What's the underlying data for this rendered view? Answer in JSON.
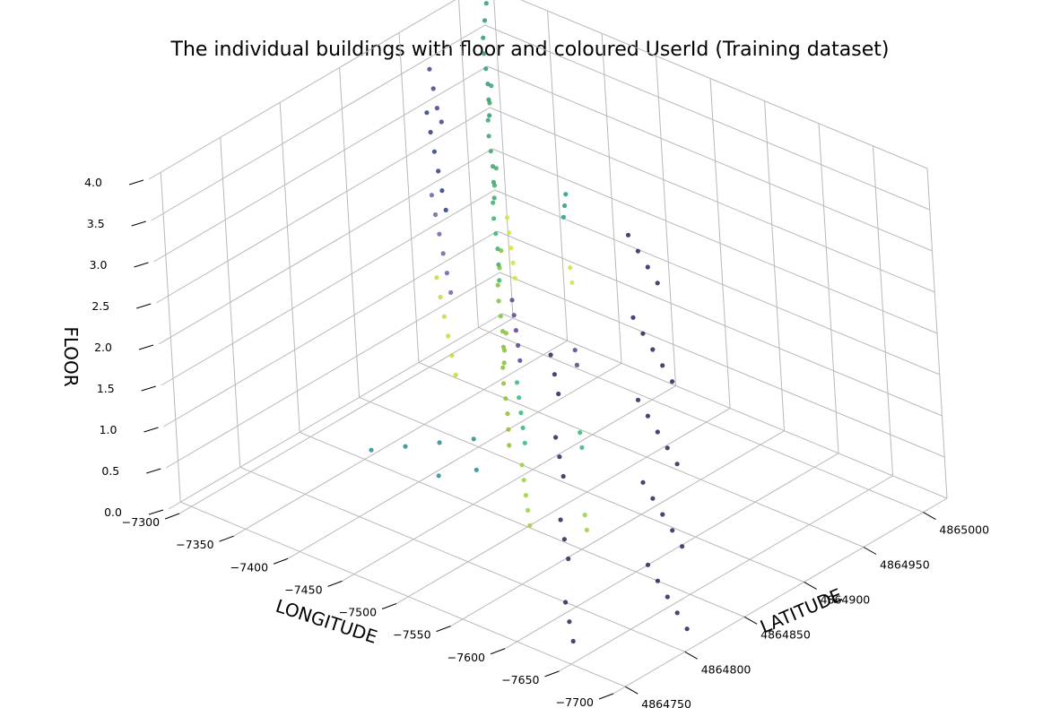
{
  "chart_data": {
    "type": "scatter",
    "projection": "3d",
    "title": "The individual buildings with floor and coloured UserId (Training dataset)",
    "xlabel": "LONGITUDE",
    "ylabel": "LATITUDE",
    "zlabel": "FLOOR",
    "xlim": [
      -7700,
      -7290
    ],
    "ylim": [
      4864740,
      4865020
    ],
    "zlim": [
      0,
      4
    ],
    "x_ticks": [
      "−7300",
      "−7350",
      "−7400",
      "−7450",
      "−7500",
      "−7550",
      "−7600",
      "−7650",
      "−7700"
    ],
    "x_tick_values": [
      -7300,
      -7350,
      -7400,
      -7450,
      -7500,
      -7550,
      -7600,
      -7650,
      -7700
    ],
    "y_ticks": [
      "4864750",
      "4864800",
      "4864850",
      "4864900",
      "4864950",
      "4865000"
    ],
    "y_tick_values": [
      4864750,
      4864800,
      4864850,
      4864900,
      4864950,
      4865000
    ],
    "z_ticks": [
      "0.0",
      "0.5",
      "1.0",
      "1.5",
      "2.0",
      "2.5",
      "3.0",
      "3.5",
      "4.0"
    ],
    "z_tick_values": [
      0,
      0.5,
      1,
      1.5,
      2,
      2.5,
      3,
      3.5,
      4
    ],
    "grid": true,
    "colormap": "viridis",
    "color_by": "UserId",
    "colormap_stops": [
      "#440154",
      "#482878",
      "#3e4a89",
      "#31688e",
      "#26828e",
      "#1f9e89",
      "#35b779",
      "#6ece58",
      "#b5de2b",
      "#fde725"
    ],
    "series": [
      {
        "group": "building-0-floor-0",
        "floor": 0,
        "color": "#8fbd2f",
        "points": [
          [
            -7310,
            4865005
          ],
          [
            -7325,
            4864990
          ],
          [
            -7340,
            4864975
          ],
          [
            -7355,
            4864962
          ],
          [
            -7370,
            4864950
          ],
          [
            -7385,
            4864938
          ],
          [
            -7400,
            4864925
          ],
          [
            -7415,
            4864912
          ]
        ]
      },
      {
        "group": "building-0-floor-0-lower",
        "floor": 0,
        "color": "#2b8b8c",
        "points": [
          [
            -7345,
            4864860
          ],
          [
            -7360,
            4864875
          ],
          [
            -7375,
            4864890
          ],
          [
            -7390,
            4864905
          ],
          [
            -7420,
            4864880
          ],
          [
            -7405,
            4864862
          ]
        ]
      },
      {
        "group": "building-0-floor-1",
        "floor": 1,
        "color": "#7fbf3a",
        "points": [
          [
            -7310,
            4865005
          ],
          [
            -7325,
            4864990
          ],
          [
            -7340,
            4864975
          ],
          [
            -7355,
            4864962
          ],
          [
            -7370,
            4864950
          ],
          [
            -7385,
            4864938
          ],
          [
            -7400,
            4864925
          ],
          [
            -7415,
            4864912
          ]
        ]
      },
      {
        "group": "building-0-floor-1-b",
        "floor": 1,
        "color": "#c4dc3a",
        "points": [
          [
            -7300,
            4864960
          ],
          [
            -7320,
            4864945
          ],
          [
            -7340,
            4864930
          ],
          [
            -7360,
            4864915
          ],
          [
            -7380,
            4864900
          ],
          [
            -7400,
            4864885
          ]
        ]
      },
      {
        "group": "building-0-floor-2",
        "floor": 2,
        "color": "#3aaf6d",
        "points": [
          [
            -7310,
            4865005
          ],
          [
            -7325,
            4864990
          ],
          [
            -7340,
            4864975
          ],
          [
            -7355,
            4864962
          ],
          [
            -7370,
            4864950
          ],
          [
            -7385,
            4864938
          ],
          [
            -7400,
            4864925
          ],
          [
            -7415,
            4864912
          ]
        ]
      },
      {
        "group": "building-0-floor-2-b",
        "floor": 2,
        "color": "#6b63a6",
        "points": [
          [
            -7300,
            4864960
          ],
          [
            -7320,
            4864945
          ],
          [
            -7340,
            4864930
          ],
          [
            -7360,
            4864915
          ],
          [
            -7380,
            4864900
          ],
          [
            -7400,
            4864885
          ]
        ]
      },
      {
        "group": "building-0-floor-3",
        "floor": 3,
        "color": "#3aa36a",
        "points": [
          [
            -7310,
            4865005
          ],
          [
            -7325,
            4864990
          ],
          [
            -7340,
            4864975
          ],
          [
            -7355,
            4864962
          ],
          [
            -7370,
            4864950
          ],
          [
            -7385,
            4864938
          ],
          [
            -7400,
            4864925
          ],
          [
            -7415,
            4864912
          ]
        ]
      },
      {
        "group": "building-0-floor-3-b",
        "floor": 3,
        "color": "#2d3f7a",
        "points": [
          [
            -7300,
            4864960
          ],
          [
            -7320,
            4864945
          ],
          [
            -7340,
            4864930
          ],
          [
            -7360,
            4864915
          ],
          [
            -7380,
            4864900
          ],
          [
            -7400,
            4864885
          ]
        ]
      },
      {
        "group": "building-0-floor-4",
        "floor": 4,
        "color": "#2e9a72",
        "points": [
          [
            -7310,
            4865005
          ],
          [
            -7325,
            4864990
          ],
          [
            -7340,
            4864975
          ],
          [
            -7355,
            4864962
          ],
          [
            -7370,
            4864950
          ],
          [
            -7385,
            4864938
          ],
          [
            -7400,
            4864925
          ],
          [
            -7415,
            4864912
          ]
        ]
      },
      {
        "group": "building-0-floor-4-b",
        "floor": 4,
        "color": "#4b3f8a",
        "points": [
          [
            -7340,
            4864930
          ],
          [
            -7360,
            4864915
          ],
          [
            -7380,
            4864900
          ],
          [
            -7395,
            4864890
          ]
        ]
      },
      {
        "group": "building-1-floor-0",
        "floor": 0,
        "color": "#9ccf3f",
        "points": [
          [
            -7440,
            4864900
          ],
          [
            -7455,
            4864888
          ],
          [
            -7470,
            4864876
          ],
          [
            -7485,
            4864864
          ],
          [
            -7500,
            4864852
          ],
          [
            -7520,
            4864880
          ],
          [
            -7535,
            4864868
          ]
        ]
      },
      {
        "group": "building-1-floor-1",
        "floor": 1,
        "color": "#35b779",
        "points": [
          [
            -7440,
            4864900
          ],
          [
            -7455,
            4864888
          ],
          [
            -7470,
            4864876
          ],
          [
            -7485,
            4864864
          ],
          [
            -7500,
            4864852
          ],
          [
            -7520,
            4864880
          ],
          [
            -7535,
            4864868
          ]
        ]
      },
      {
        "group": "building-1-floor-2",
        "floor": 2,
        "color": "#5a3f8f",
        "points": [
          [
            -7440,
            4864900
          ],
          [
            -7455,
            4864888
          ],
          [
            -7470,
            4864876
          ],
          [
            -7485,
            4864864
          ],
          [
            -7500,
            4864852
          ],
          [
            -7520,
            4864880
          ],
          [
            -7535,
            4864868
          ]
        ]
      },
      {
        "group": "building-1-floor-3",
        "floor": 3,
        "color": "#d7e23a",
        "points": [
          [
            -7440,
            4864900
          ],
          [
            -7455,
            4864888
          ],
          [
            -7470,
            4864876
          ],
          [
            -7485,
            4864864
          ],
          [
            -7500,
            4864852
          ],
          [
            -7520,
            4864880
          ],
          [
            -7535,
            4864868
          ]
        ]
      },
      {
        "group": "building-1-floor-3-b",
        "floor": 3,
        "color": "#1f9e89",
        "points": [
          [
            -7450,
            4864940
          ],
          [
            -7460,
            4864930
          ],
          [
            -7470,
            4864920
          ]
        ]
      },
      {
        "group": "building-2-floor-0",
        "floor": 0,
        "color": "#2e2158",
        "points": [
          [
            -7600,
            4864860
          ],
          [
            -7620,
            4864850
          ],
          [
            -7640,
            4864840
          ],
          [
            -7660,
            4864830
          ],
          [
            -7680,
            4864820
          ],
          [
            -7590,
            4864800
          ],
          [
            -7610,
            4864785
          ],
          [
            -7630,
            4864770
          ]
        ]
      },
      {
        "group": "building-2-floor-1",
        "floor": 1,
        "color": "#2e2158",
        "points": [
          [
            -7600,
            4864860
          ],
          [
            -7620,
            4864850
          ],
          [
            -7640,
            4864840
          ],
          [
            -7660,
            4864830
          ],
          [
            -7680,
            4864820
          ],
          [
            -7590,
            4864800
          ],
          [
            -7610,
            4864785
          ],
          [
            -7630,
            4864770
          ]
        ]
      },
      {
        "group": "building-2-floor-2",
        "floor": 2,
        "color": "#2e2158",
        "points": [
          [
            -7600,
            4864860
          ],
          [
            -7620,
            4864850
          ],
          [
            -7640,
            4864840
          ],
          [
            -7660,
            4864830
          ],
          [
            -7680,
            4864820
          ],
          [
            -7590,
            4864800
          ],
          [
            -7610,
            4864785
          ],
          [
            -7630,
            4864770
          ]
        ]
      },
      {
        "group": "building-2-floor-3",
        "floor": 3,
        "color": "#2e2158",
        "points": [
          [
            -7600,
            4864860
          ],
          [
            -7620,
            4864850
          ],
          [
            -7640,
            4864840
          ],
          [
            -7660,
            4864830
          ],
          [
            -7680,
            4864820
          ],
          [
            -7590,
            4864800
          ],
          [
            -7610,
            4864785
          ],
          [
            -7630,
            4864770
          ]
        ]
      },
      {
        "group": "building-2-floor-4",
        "floor": 4,
        "color": "#2e2158",
        "points": [
          [
            -7600,
            4864860
          ],
          [
            -7620,
            4864850
          ],
          [
            -7640,
            4864840
          ],
          [
            -7660,
            4864830
          ]
        ]
      }
    ]
  }
}
